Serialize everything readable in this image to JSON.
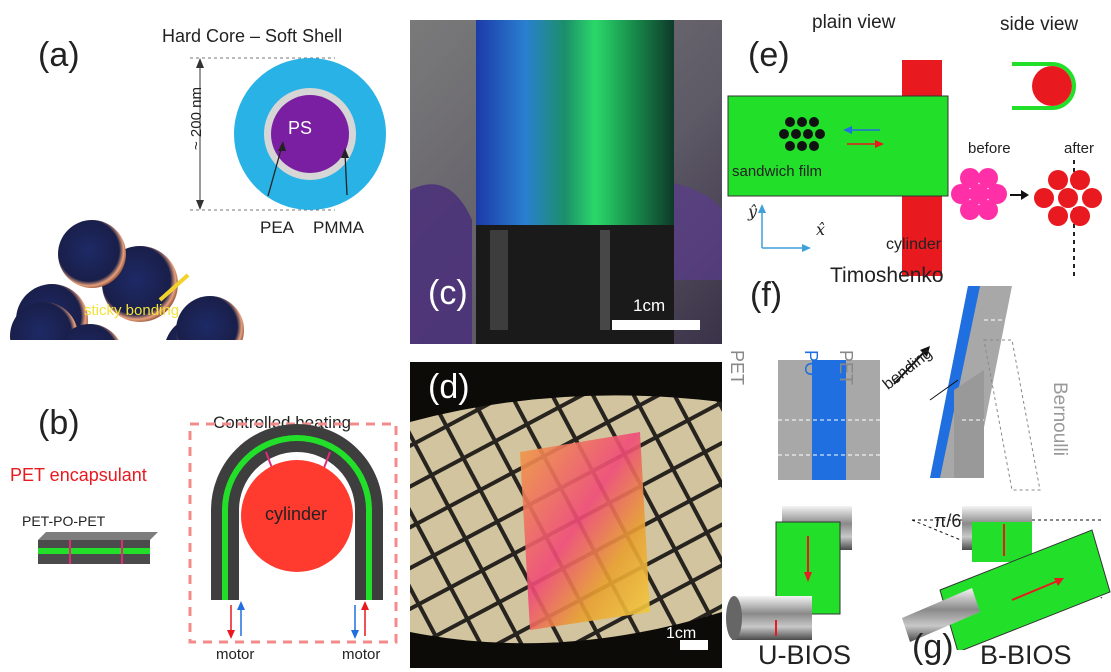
{
  "panel_a": {
    "label": "(a)",
    "title": "Hard Core – Soft Shell",
    "size": "~ 200 nm",
    "core": "PS",
    "layer_inner": "PEA",
    "layer_outer": "PMMA",
    "bond": "sticky bonding"
  },
  "panel_b": {
    "label": "(b)",
    "encapsulant": "PET encapsulant",
    "stack": "PET-PO-PET",
    "heating": "Controlled heating",
    "cylinder": "cylinder",
    "motor_left": "motor",
    "motor_right": "motor"
  },
  "panel_c": {
    "label": "(c)",
    "scale": "1cm"
  },
  "panel_d": {
    "label": "(d)",
    "scale": "1cm"
  },
  "panel_e": {
    "label": "(e)",
    "plain_view": "plain view",
    "side_view": "side view",
    "film": "sandwich film",
    "before": "before",
    "after": "after",
    "cylinder": "cylinder",
    "y_axis": "ŷ",
    "x_axis": "x̂"
  },
  "panel_f": {
    "label": "(f)",
    "timoshenko": "Timoshenko",
    "bernoulli": "Bernoulli",
    "bending": "bending",
    "layer_pet_left": "PET",
    "layer_po": "PO",
    "layer_pet_right": "PET"
  },
  "panel_g": {
    "label": "(g)",
    "angle": "π/6",
    "u_bios": "U-BIOS",
    "b_bios": "B-BIOS"
  },
  "colors": {
    "green": "#22e02a",
    "cyan": "#29b2e6",
    "purple": "#7b1fa2",
    "red": "#e8191f",
    "blue": "#1f6fe0",
    "pink": "#ff2fa8"
  }
}
